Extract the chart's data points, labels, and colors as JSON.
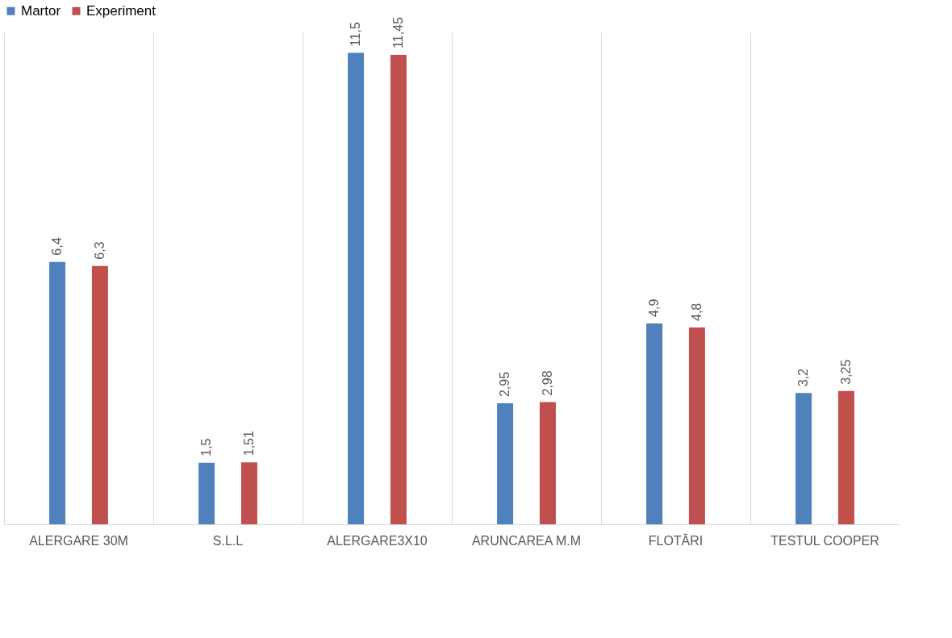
{
  "chart_data": {
    "type": "bar",
    "categories": [
      "ALERGARE 30M",
      "S.L.L",
      "ALERGARE3X10",
      "ARUNCAREA M.M",
      "FLOTĂRI",
      "TESTUL COOPER"
    ],
    "series": [
      {
        "name": "Martor",
        "color": "#4f81bd",
        "values": [
          6.4,
          1.5,
          11.5,
          2.95,
          4.9,
          3.2
        ],
        "value_labels": [
          "6,4",
          "1,5",
          "11,5",
          "2,95",
          "4,9",
          "3,2"
        ]
      },
      {
        "name": "Experiment",
        "color": "#c0504d",
        "values": [
          6.3,
          1.51,
          11.45,
          2.98,
          4.8,
          3.25
        ],
        "value_labels": [
          "6,3",
          "1,51",
          "11,45",
          "2,98",
          "4,8",
          "3,25"
        ]
      }
    ],
    "legend": "top",
    "grid": "x"
  }
}
